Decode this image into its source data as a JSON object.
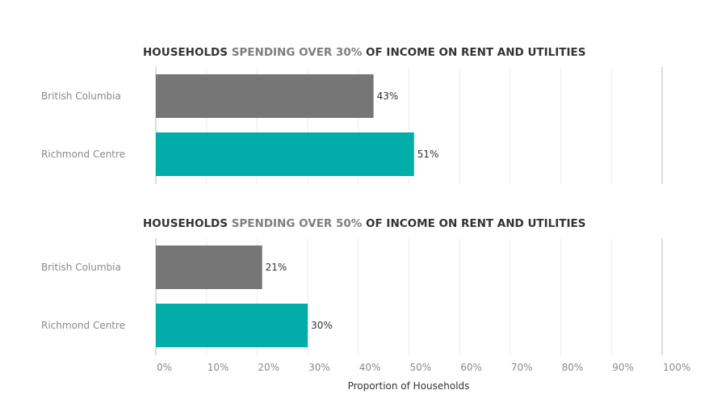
{
  "colors": {
    "title_dark": "#333333",
    "title_highlight": "#7f7f7f",
    "bc_bar": "#767676",
    "rc_bar": "#00ada9",
    "grid": "#ececec",
    "axis": "#bdbdbd",
    "label_gray": "#8a8a8a"
  },
  "chart_data": [
    {
      "type": "bar",
      "orientation": "horizontal",
      "title_parts": [
        "HOUSEHOLDS ",
        "SPENDING OVER 30%",
        " OF INCOME ON RENT AND UTILITIES"
      ],
      "categories": [
        "British Columbia",
        "Richmond Centre"
      ],
      "values": [
        43,
        51
      ],
      "data_labels": [
        "43%",
        "51%"
      ],
      "xlim": [
        0,
        100
      ],
      "grid": true
    },
    {
      "type": "bar",
      "orientation": "horizontal",
      "title_parts": [
        "HOUSEHOLDS ",
        "SPENDING OVER 50%",
        " OF INCOME ON RENT AND UTILITIES"
      ],
      "categories": [
        "British Columbia",
        "Richmond Centre"
      ],
      "values": [
        21,
        30
      ],
      "data_labels": [
        "21%",
        "30%"
      ],
      "xlim": [
        0,
        100
      ],
      "grid": true
    }
  ],
  "axis": {
    "ticks": [
      0,
      10,
      20,
      30,
      40,
      50,
      60,
      70,
      80,
      90,
      100
    ],
    "tick_labels": [
      "0%",
      "10%",
      "20%",
      "30%",
      "40%",
      "50%",
      "60%",
      "70%",
      "80%",
      "90%",
      "100%"
    ],
    "xlabel": "Proportion of Households"
  }
}
